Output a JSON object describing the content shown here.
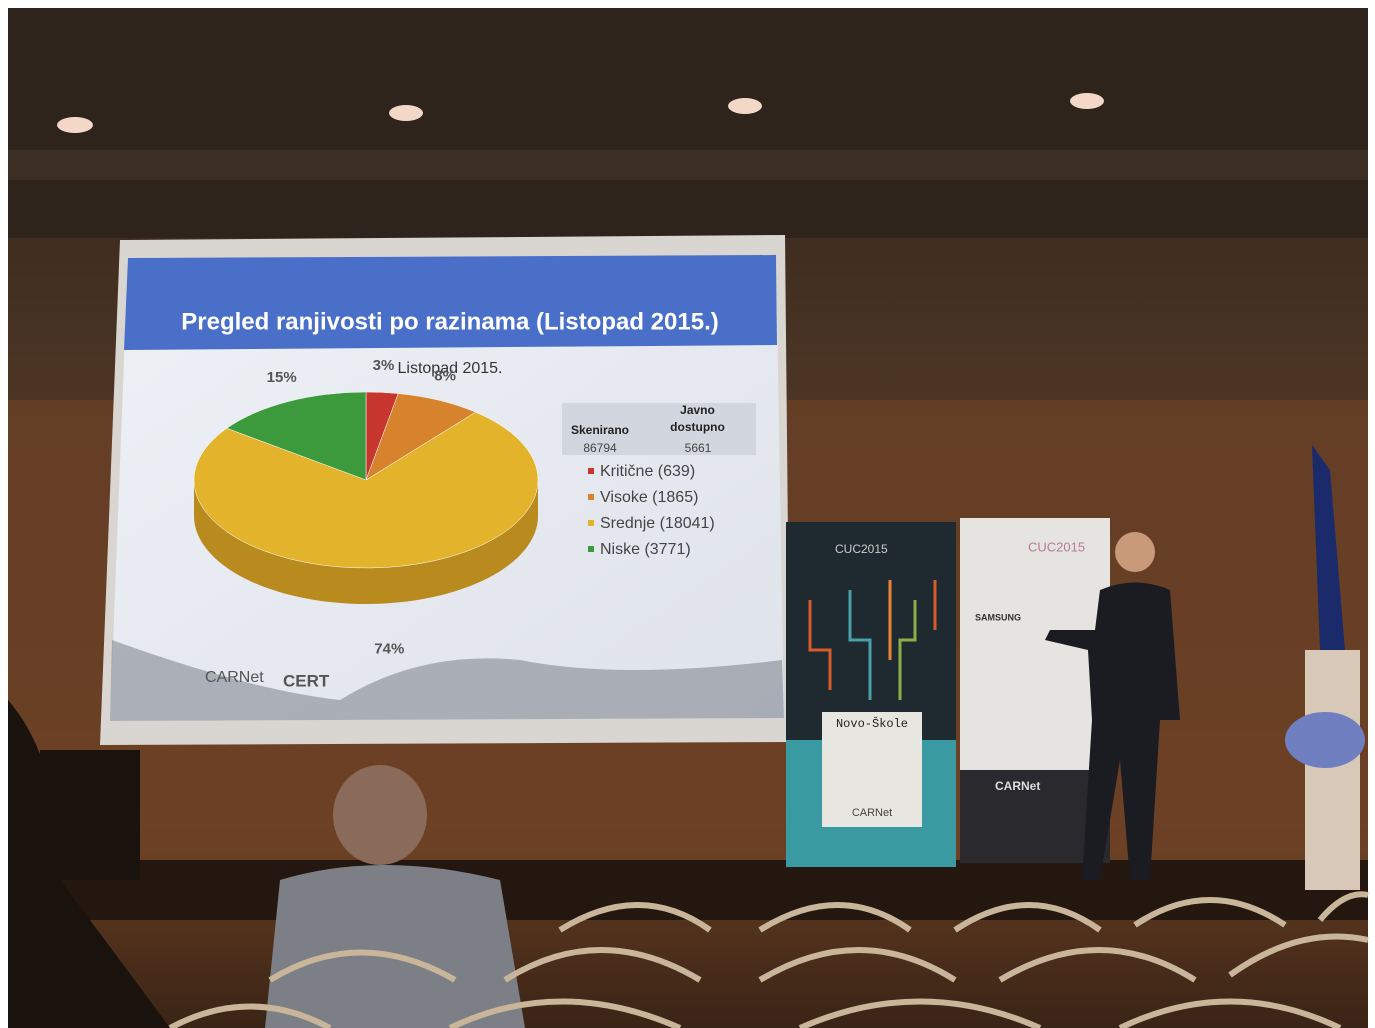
{
  "slide_title": "Pregled ranjivosti po razinama (Listopad 2015.)",
  "chart_data": {
    "type": "pie",
    "title": "Listopad 2015.",
    "categories": [
      "Kritične (639)",
      "Visoke (1865)",
      "Srednje (18041)",
      "Niske (3771)"
    ],
    "values": [
      3,
      8,
      74,
      15
    ],
    "value_labels": [
      "3%",
      "8%",
      "74%",
      "15%"
    ],
    "colors": [
      "#c8372f",
      "#d7822c",
      "#e2b32b",
      "#3d9a3c"
    ]
  },
  "table": {
    "headers": [
      "Skenirano",
      "Javno dostupno"
    ],
    "values": [
      86794,
      5661
    ]
  },
  "slide_logos": [
    "CARNet",
    "CERT"
  ],
  "banners": {
    "left_title": "CUC2015",
    "left_sign": "Novo-Škole",
    "left_logo": "CARNet",
    "right_title": "CUC2015",
    "right_sponsor": "SAMSUNG",
    "right_logo": "CARNet"
  }
}
